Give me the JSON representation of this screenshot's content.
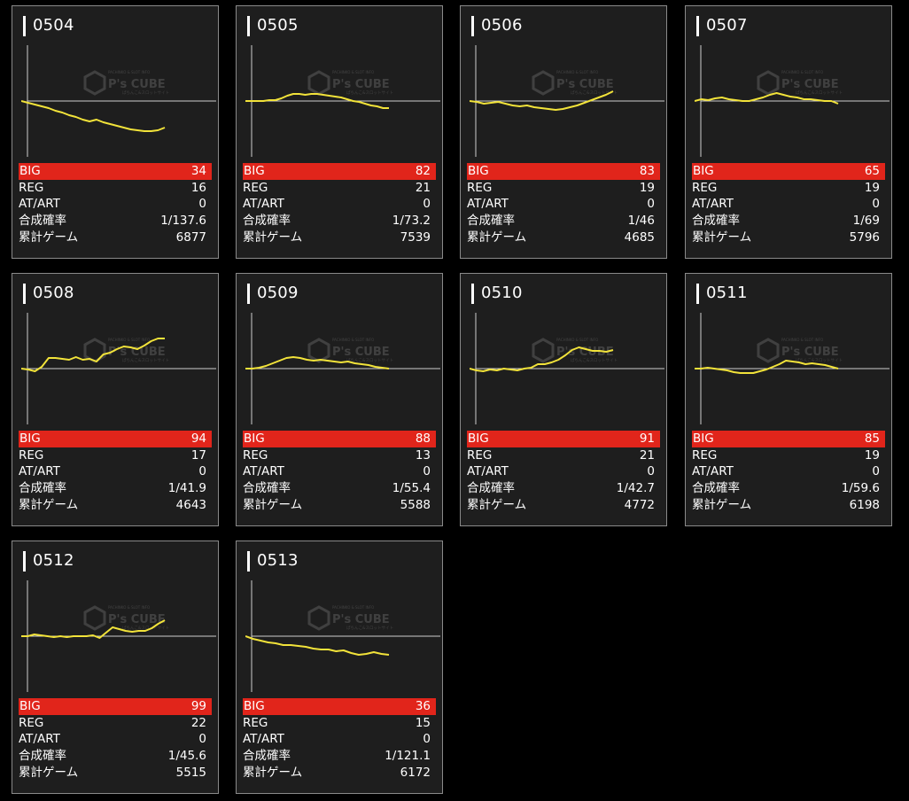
{
  "colors": {
    "background": "#000000",
    "card": "#1e1e1e",
    "card_border": "#8a8a8a",
    "big_highlight": "#e1251b",
    "graph_line": "#f2e33a",
    "axis": "#cfcfcf"
  },
  "watermark": {
    "brand": "P's CUBE",
    "small_top": "PACHINKO & SLOT INFO",
    "small_bottom": "ぱちんこ&スロットサイト"
  },
  "labels": {
    "big": "BIG",
    "reg": "REG",
    "atart": "AT/ART",
    "combined": "合成確率",
    "games": "累計ゲーム"
  },
  "machines": [
    {
      "id": "0504",
      "big": "34",
      "reg": "16",
      "atart": "0",
      "combined": "1/137.6",
      "games": "6877",
      "trend": [
        0,
        -2,
        -4,
        -6,
        -8,
        -11,
        -13,
        -16,
        -18,
        -21,
        -23,
        -21,
        -24,
        -26,
        -28,
        -30,
        -32,
        -33,
        -34,
        -34,
        -33,
        -30
      ]
    },
    {
      "id": "0505",
      "big": "82",
      "reg": "21",
      "atart": "0",
      "combined": "1/73.2",
      "games": "7539",
      "trend": [
        0,
        0,
        0,
        0,
        1,
        1,
        3,
        6,
        8,
        8,
        7,
        8,
        8,
        7,
        6,
        5,
        4,
        2,
        0,
        -1,
        -3,
        -5,
        -6,
        -8,
        -8
      ]
    },
    {
      "id": "0506",
      "big": "83",
      "reg": "19",
      "atart": "0",
      "combined": "1/46",
      "games": "4685",
      "trend": [
        0,
        -1,
        -3,
        -2,
        -1,
        -3,
        -5,
        -6,
        -5,
        -7,
        -8,
        -9,
        -10,
        -9,
        -7,
        -5,
        -2,
        1,
        4,
        7,
        11
      ]
    },
    {
      "id": "0507",
      "big": "65",
      "reg": "19",
      "atart": "0",
      "combined": "1/69",
      "games": "5796",
      "trend": [
        0,
        2,
        1,
        3,
        4,
        2,
        1,
        0,
        0,
        2,
        4,
        7,
        9,
        7,
        5,
        4,
        2,
        2,
        1,
        0,
        0,
        -3
      ]
    },
    {
      "id": "0508",
      "big": "94",
      "reg": "17",
      "atart": "0",
      "combined": "1/41.9",
      "games": "4643",
      "trend": [
        0,
        -1,
        -3,
        2,
        12,
        12,
        11,
        10,
        13,
        10,
        11,
        8,
        16,
        18,
        22,
        25,
        24,
        22,
        26,
        31,
        34,
        34
      ]
    },
    {
      "id": "0509",
      "big": "88",
      "reg": "13",
      "atart": "0",
      "combined": "1/55.4",
      "games": "5588",
      "trend": [
        0,
        0,
        1,
        3,
        6,
        9,
        12,
        13,
        12,
        10,
        9,
        10,
        9,
        8,
        7,
        8,
        6,
        5,
        4,
        2,
        1,
        0
      ]
    },
    {
      "id": "0510",
      "big": "91",
      "reg": "21",
      "atart": "0",
      "combined": "1/42.7",
      "games": "4772",
      "trend": [
        0,
        -2,
        -3,
        -1,
        -2,
        0,
        -1,
        -2,
        0,
        1,
        5,
        5,
        7,
        10,
        15,
        21,
        24,
        22,
        20,
        20,
        19,
        21
      ]
    },
    {
      "id": "0511",
      "big": "85",
      "reg": "19",
      "atart": "0",
      "combined": "1/59.6",
      "games": "6198",
      "trend": [
        0,
        0,
        1,
        0,
        -1,
        -2,
        -4,
        -5,
        -5,
        -5,
        -3,
        -1,
        2,
        5,
        9,
        8,
        7,
        5,
        6,
        5,
        4,
        2,
        0
      ]
    },
    {
      "id": "0512",
      "big": "99",
      "reg": "22",
      "atart": "0",
      "combined": "1/45.6",
      "games": "5515",
      "trend": [
        0,
        0,
        2,
        1,
        0,
        -1,
        0,
        -1,
        0,
        0,
        0,
        1,
        -2,
        4,
        10,
        8,
        6,
        5,
        6,
        6,
        9,
        14,
        18
      ]
    },
    {
      "id": "0513",
      "big": "36",
      "reg": "15",
      "atart": "0",
      "combined": "1/121.1",
      "games": "6172",
      "trend": [
        0,
        -3,
        -5,
        -7,
        -8,
        -10,
        -10,
        -11,
        -12,
        -14,
        -15,
        -15,
        -17,
        -16,
        -19,
        -21,
        -20,
        -18,
        -20,
        -21
      ]
    }
  ]
}
